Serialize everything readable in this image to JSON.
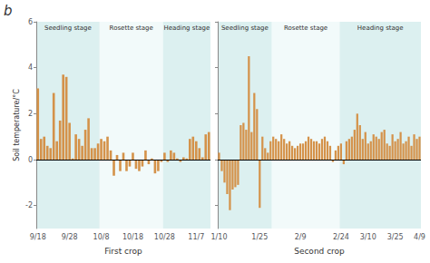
{
  "chart_data": [
    {
      "type": "bar",
      "xlabel": "First crop",
      "ylabel": "Soil temperature/°C",
      "annotations": [
        {
          "text": "b"
        }
      ],
      "stages": [
        {
          "text": "Seedling stage",
          "start": 0,
          "end": 20,
          "color": "#DCF0F0"
        },
        {
          "text": "Rosette stage",
          "start": 20,
          "end": 40,
          "color": "#F2FAFA"
        },
        {
          "text": "Heading stage",
          "start": 40,
          "end": 55,
          "color": "#DCF0F0"
        }
      ],
      "categories": [
        "9/18",
        null,
        null,
        null,
        null,
        null,
        null,
        null,
        null,
        null,
        "9/28",
        null,
        null,
        null,
        null,
        null,
        null,
        null,
        null,
        null,
        "10/8",
        null,
        null,
        null,
        null,
        null,
        null,
        null,
        null,
        null,
        "10/18",
        null,
        null,
        null,
        null,
        null,
        null,
        null,
        null,
        null,
        "10/28",
        null,
        null,
        null,
        null,
        null,
        null,
        null,
        null,
        null,
        "11/7",
        null,
        null,
        null,
        null
      ],
      "values": [
        3.1,
        0.9,
        1.0,
        0.6,
        0.5,
        2.9,
        0.8,
        1.7,
        3.7,
        3.6,
        1.6,
        0.05,
        1.1,
        0.9,
        0.6,
        1.3,
        1.8,
        0.5,
        0.5,
        0.7,
        0.9,
        0.8,
        1.0,
        0.4,
        -0.7,
        0.2,
        -0.5,
        0.3,
        -0.5,
        -0.3,
        0.3,
        -0.4,
        -0.5,
        -0.3,
        0.4,
        -0.2,
        0.05,
        -0.6,
        -0.5,
        -0.1,
        0.3,
        -0.1,
        0.4,
        0.3,
        0.05,
        -0.1,
        0.1,
        0.05,
        0.9,
        1.0,
        0.8,
        0.5,
        0.1,
        1.1,
        1.2
      ],
      "color": "#D4924A",
      "ylim": [
        -3,
        6
      ],
      "yticks": [
        -2,
        0,
        2,
        4,
        6
      ],
      "grid": false
    },
    {
      "type": "bar",
      "xlabel": "Second crop",
      "stages": [
        {
          "text": "Seedling stage",
          "start": 0,
          "end": 20,
          "color": "#DCF0F0"
        },
        {
          "text": "Rosette stage",
          "start": 20,
          "end": 45,
          "color": "#F2FAFA"
        },
        {
          "text": "Heading stage",
          "start": 45,
          "end": 75,
          "color": "#DCF0F0"
        }
      ],
      "categories": [
        "1/10",
        null,
        null,
        null,
        null,
        null,
        null,
        null,
        null,
        null,
        null,
        null,
        null,
        null,
        null,
        "1/25",
        null,
        null,
        null,
        null,
        null,
        null,
        null,
        null,
        null,
        null,
        null,
        null,
        null,
        null,
        "2/9",
        null,
        null,
        null,
        null,
        null,
        null,
        null,
        null,
        null,
        null,
        null,
        null,
        null,
        null,
        "2/24",
        null,
        null,
        null,
        null,
        null,
        null,
        null,
        null,
        null,
        "3/10",
        null,
        null,
        null,
        null,
        null,
        null,
        null,
        null,
        null,
        "3/25",
        null,
        null,
        null,
        null,
        null,
        null,
        null,
        null,
        "4/9"
      ],
      "values": [
        0.3,
        -0.5,
        -1.0,
        -1.5,
        -2.2,
        -1.3,
        -1.2,
        -1.1,
        1.5,
        1.6,
        1.3,
        4.5,
        1.2,
        2.9,
        2.2,
        -2.1,
        1.0,
        0.5,
        0.3,
        0.8,
        1.0,
        0.9,
        0.8,
        1.1,
        0.9,
        0.7,
        0.8,
        0.6,
        0.5,
        0.6,
        0.7,
        0.7,
        0.8,
        1.0,
        0.9,
        0.8,
        0.8,
        0.7,
        0.9,
        1.0,
        0.8,
        0.6,
        -0.1,
        0.4,
        0.6,
        0.7,
        -0.2,
        0.8,
        0.9,
        1.0,
        1.3,
        2.0,
        1.5,
        0.9,
        1.2,
        0.7,
        0.8,
        1.1,
        1.0,
        0.9,
        1.2,
        1.3,
        0.7,
        0.6,
        1.1,
        0.8,
        0.9,
        1.2,
        0.7,
        0.8,
        1.0,
        0.6,
        1.1,
        0.9,
        1.0
      ],
      "color": "#D4924A",
      "ylim": [
        -3,
        6
      ],
      "yticks": [
        -2,
        0,
        2,
        4,
        6
      ],
      "grid": false,
      "tick_labels": "x"
    }
  ]
}
